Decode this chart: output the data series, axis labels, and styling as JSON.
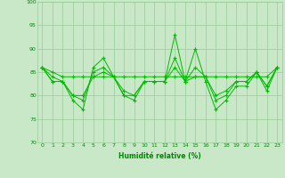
{
  "series": [
    [
      86,
      83,
      83,
      79,
      77,
      86,
      88,
      84,
      80,
      79,
      83,
      83,
      83,
      93,
      83,
      90,
      83,
      77,
      79,
      82,
      82,
      85,
      81,
      86
    ],
    [
      86,
      85,
      84,
      84,
      84,
      84,
      84,
      84,
      84,
      84,
      84,
      84,
      84,
      84,
      84,
      84,
      84,
      84,
      84,
      84,
      84,
      84,
      84,
      86
    ],
    [
      86,
      84,
      83,
      80,
      79,
      85,
      86,
      84,
      80,
      80,
      83,
      83,
      83,
      88,
      83,
      86,
      84,
      79,
      80,
      83,
      83,
      85,
      82,
      86
    ],
    [
      86,
      83,
      83,
      80,
      80,
      84,
      85,
      84,
      81,
      80,
      83,
      83,
      83,
      86,
      83,
      84,
      84,
      80,
      81,
      83,
      83,
      85,
      82,
      86
    ]
  ],
  "x": [
    0,
    1,
    2,
    3,
    4,
    5,
    6,
    7,
    8,
    9,
    10,
    11,
    12,
    13,
    14,
    15,
    16,
    17,
    18,
    19,
    20,
    21,
    22,
    23
  ],
  "line_color": "#00bb00",
  "marker_color": "#00bb00",
  "bg_color": "#c8e8c8",
  "grid_color": "#99cc99",
  "axis_color": "#008800",
  "xlabel": "Humidité relative (%)",
  "ylim": [
    70,
    100
  ],
  "xlim": [
    -0.5,
    23.5
  ],
  "yticks": [
    70,
    75,
    80,
    85,
    90,
    95,
    100
  ],
  "xticks": [
    0,
    1,
    2,
    3,
    4,
    5,
    6,
    7,
    8,
    9,
    10,
    11,
    12,
    13,
    14,
    15,
    16,
    17,
    18,
    19,
    20,
    21,
    22,
    23
  ]
}
